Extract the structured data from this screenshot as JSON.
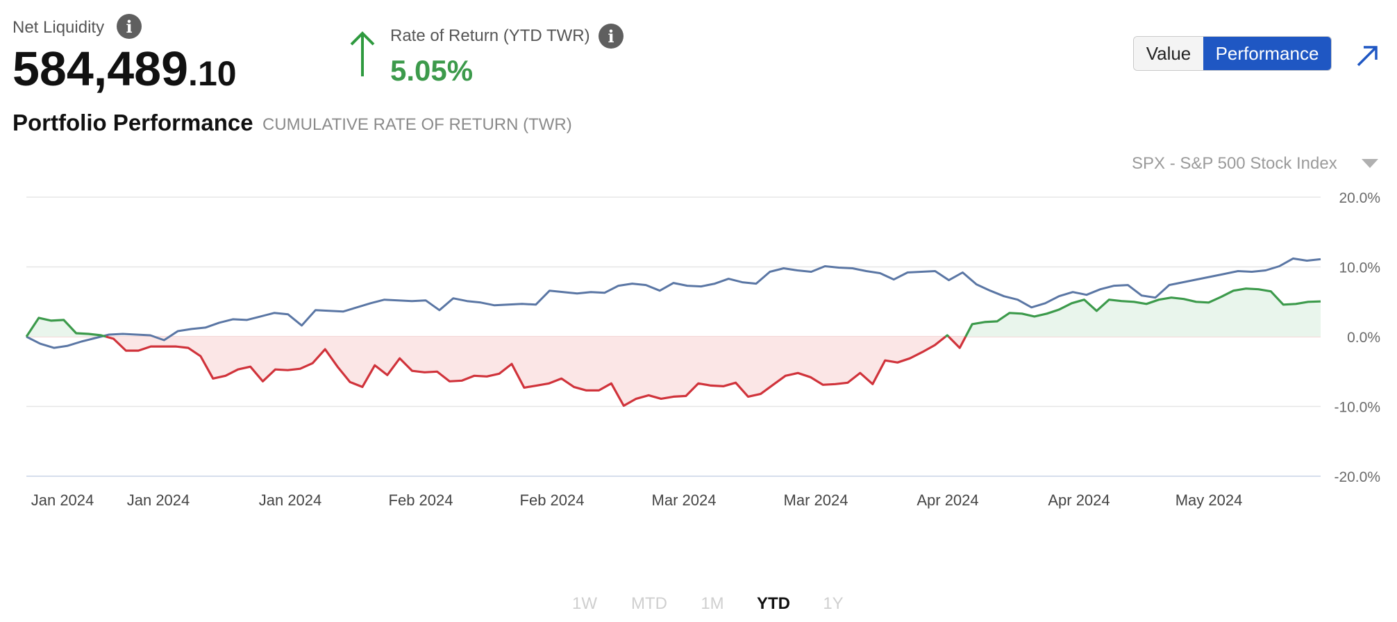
{
  "header": {
    "net_liquidity_label": "Net Liquidity",
    "net_liquidity_main": "584,489",
    "net_liquidity_cents": ".10",
    "ror_label": "Rate of Return (YTD TWR)",
    "ror_value": "5.05%",
    "info_glyph": "i"
  },
  "toggle": {
    "value_label": "Value",
    "performance_label": "Performance",
    "active": "Performance"
  },
  "section": {
    "title": "Portfolio Performance",
    "subtitle": "CUMULATIVE RATE OF RETURN (TWR)"
  },
  "benchmark": {
    "selected": "SPX - S&P 500 Stock Index"
  },
  "ranges": [
    "1W",
    "MTD",
    "1M",
    "YTD",
    "1Y"
  ],
  "active_range": "YTD",
  "icons": [
    "info-icon",
    "arrow-up-icon",
    "expand-arrow-icon",
    "dropdown-caret-icon"
  ],
  "colors": {
    "positive": "#3c9a4b",
    "negative": "#d0333b",
    "benchmark": "#5a76a4",
    "positive_fill": "#e9f5ec",
    "negative_fill": "#fbe6e6",
    "accent": "#1f57c3",
    "arrow": "#2f9a3f"
  },
  "chart_data": {
    "type": "line",
    "x_tick_labels": [
      "Jan 2024",
      "Jan 2024",
      "Jan 2024",
      "Feb 2024",
      "Feb 2024",
      "Mar 2024",
      "Mar 2024",
      "Apr 2024",
      "Apr 2024",
      "May 2024"
    ],
    "y_ticks": [
      "20.0%",
      "10.0%",
      "0.0%",
      "-10.0%",
      "-20.0%"
    ],
    "ylim": [
      -20,
      20
    ],
    "grid": true,
    "series": [
      {
        "key": "portfolio",
        "values": [
          0.0,
          2.7,
          2.3,
          2.4,
          0.5,
          0.4,
          0.2,
          -0.3,
          -2.0,
          -2.0,
          -1.4,
          -1.4,
          -1.4,
          -1.6,
          -2.8,
          -6.0,
          -5.6,
          -4.7,
          -4.3,
          -6.4,
          -4.7,
          -4.8,
          -4.6,
          -3.8,
          -1.8,
          -4.3,
          -6.5,
          -7.2,
          -4.1,
          -5.5,
          -3.1,
          -4.9,
          -5.1,
          -5.0,
          -6.4,
          -6.3,
          -5.6,
          -5.7,
          -5.3,
          -3.9,
          -7.3,
          -7.0,
          -6.7,
          -6.0,
          -7.2,
          -7.7,
          -7.7,
          -6.7,
          -9.9,
          -8.9,
          -8.4,
          -8.9,
          -8.6,
          -8.5,
          -6.7,
          -7.0,
          -7.1,
          -6.6,
          -8.6,
          -8.2,
          -6.9,
          -5.6,
          -5.2,
          -5.8,
          -6.9,
          -6.8,
          -6.6,
          -5.2,
          -6.8,
          -3.4,
          -3.7,
          -3.1,
          -2.2,
          -1.2,
          0.2,
          -1.6,
          1.8,
          2.1,
          2.2,
          3.4,
          3.3,
          2.9,
          3.3,
          3.9,
          4.8,
          5.3,
          3.7,
          5.3,
          5.1,
          5.0,
          4.7,
          5.3,
          5.6,
          5.4,
          5.0,
          4.9,
          5.7,
          6.6,
          6.9,
          6.8,
          6.5,
          4.6,
          4.7,
          5.0,
          5.05
        ]
      },
      {
        "key": "benchmark",
        "values": [
          0.0,
          -1.0,
          -1.6,
          -1.3,
          -0.7,
          -0.2,
          0.3,
          0.4,
          0.3,
          0.2,
          -0.5,
          0.8,
          1.1,
          1.3,
          2.0,
          2.5,
          2.4,
          2.9,
          3.4,
          3.2,
          1.6,
          3.8,
          3.7,
          3.6,
          4.2,
          4.8,
          5.3,
          5.2,
          5.1,
          5.2,
          3.8,
          5.5,
          5.1,
          4.9,
          4.5,
          4.6,
          4.7,
          4.6,
          6.6,
          6.4,
          6.2,
          6.4,
          6.3,
          7.3,
          7.6,
          7.4,
          6.6,
          7.7,
          7.3,
          7.2,
          7.6,
          8.3,
          7.8,
          7.6,
          9.3,
          9.8,
          9.5,
          9.3,
          10.1,
          9.9,
          9.8,
          9.4,
          9.1,
          8.2,
          9.2,
          9.3,
          9.4,
          8.1,
          9.2,
          7.5,
          6.6,
          5.8,
          5.3,
          4.2,
          4.8,
          5.8,
          6.4,
          6.0,
          6.8,
          7.3,
          7.4,
          5.9,
          5.6,
          7.4,
          7.8,
          8.2,
          8.6,
          9.0,
          9.4,
          9.3,
          9.5,
          10.1,
          11.2,
          10.9,
          11.1
        ]
      }
    ]
  }
}
